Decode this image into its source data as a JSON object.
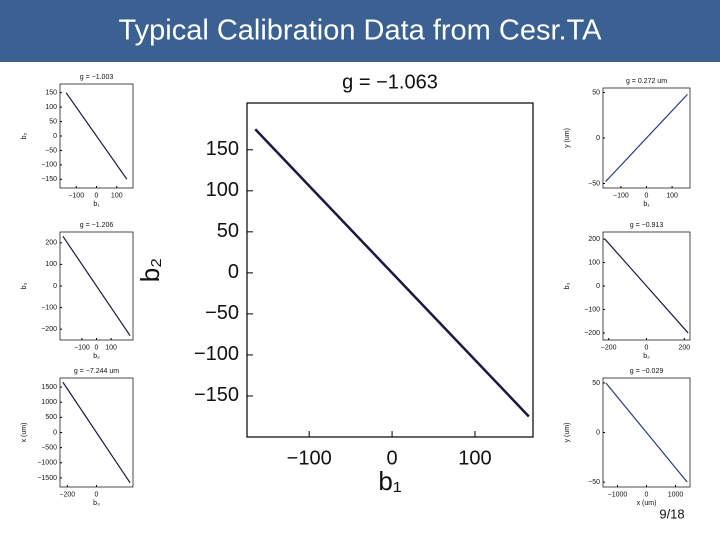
{
  "header": {
    "title": "Typical Calibration Data from Cesr.TA"
  },
  "page_number": "9/18",
  "chart_data": [
    {
      "type": "line",
      "title": "g = −1.063",
      "xlabel": "b₁",
      "ylabel": "b₂",
      "x": [
        -165,
        -100,
        0,
        100,
        165
      ],
      "values": [
        175,
        106,
        0,
        -106,
        -175
      ],
      "color": "#1a1a40",
      "xlim": [
        -175,
        170
      ],
      "ylim": [
        -200,
        207
      ],
      "xticks": [
        {
          "value": -100,
          "label": "−100"
        },
        0,
        100
      ],
      "yticks": [
        150,
        100,
        50,
        0,
        {
          "value": -50,
          "label": "−50"
        },
        {
          "value": -100,
          "label": "−100"
        },
        {
          "value": -150,
          "label": "−150"
        }
      ]
    },
    {
      "type": "line",
      "title": "g = −1.003",
      "xlabel": "b₁",
      "ylabel": "b₂",
      "x": [
        -150,
        150
      ],
      "values": [
        150,
        -150
      ],
      "color": "#1a1a40",
      "xlim": [
        -180,
        180
      ],
      "ylim": [
        -180,
        180
      ],
      "xticks": [
        {
          "value": -100,
          "label": "−100"
        },
        0,
        100
      ],
      "yticks": [
        150,
        100,
        50,
        0,
        {
          "value": -50,
          "label": "−50"
        },
        {
          "value": -100,
          "label": "−100"
        },
        {
          "value": -150,
          "label": "−150"
        }
      ]
    },
    {
      "type": "line",
      "title": "g = −1.206",
      "xlabel": "b₂",
      "ylabel": "b₃",
      "x": [
        -230,
        230
      ],
      "values": [
        230,
        -230
      ],
      "color": "#1a1a40",
      "xlim": [
        -250,
        250
      ],
      "ylim": [
        -250,
        250
      ],
      "xticks": [
        {
          "value": -100,
          "label": "−100"
        },
        0,
        100
      ],
      "yticks": [
        200,
        100,
        0,
        {
          "value": -100,
          "label": "−100"
        },
        {
          "value": -200,
          "label": "−200"
        }
      ]
    },
    {
      "type": "line",
      "title": "g = −7.244 um",
      "xlabel": "b₃",
      "ylabel": "x (um)",
      "x": [
        -230,
        230
      ],
      "values": [
        1660,
        -1660
      ],
      "color": "#1a1a40",
      "xlim": [
        -250,
        250
      ],
      "ylim": [
        -1800,
        1800
      ],
      "xticks": [
        {
          "value": -200,
          "label": "−200"
        },
        0
      ],
      "yticks": [
        1500,
        1000,
        500,
        0,
        {
          "value": -500,
          "label": "−500"
        },
        {
          "value": -1000,
          "label": "−1000"
        },
        {
          "value": -1500,
          "label": "−1500"
        }
      ]
    },
    {
      "type": "line",
      "title": "g = 0.272 um",
      "xlabel": "b₁",
      "ylabel": "y (um)",
      "x": [
        -160,
        160
      ],
      "values": [
        -48,
        48
      ],
      "color": "#2a3a8a",
      "xlim": [
        -170,
        170
      ],
      "ylim": [
        -55,
        55
      ],
      "xticks": [
        {
          "value": -100,
          "label": "−100"
        },
        0,
        100
      ],
      "yticks": [
        50,
        0,
        {
          "value": -50,
          "label": "−50"
        }
      ]
    },
    {
      "type": "line",
      "title": "g = −0.913",
      "xlabel": "b₂",
      "ylabel": "b₃",
      "x": [
        -220,
        220
      ],
      "values": [
        200,
        -200
      ],
      "color": "#1a1a40",
      "xlim": [
        -230,
        230
      ],
      "ylim": [
        -230,
        230
      ],
      "xticks": [
        {
          "value": -200,
          "label": "−200"
        },
        0,
        200
      ],
      "yticks": [
        200,
        100,
        0,
        {
          "value": -100,
          "label": "−100"
        },
        {
          "value": -200,
          "label": "−200"
        }
      ]
    },
    {
      "type": "line",
      "title": "g = −0.029",
      "xlabel": "x (um)",
      "ylabel": "y (um)",
      "x": [
        -1400,
        1400
      ],
      "values": [
        50,
        -50
      ],
      "color": "#2a3a8a",
      "xlim": [
        -1500,
        1500
      ],
      "ylim": [
        -55,
        55
      ],
      "xticks": [
        {
          "value": -1000,
          "label": "−1000"
        },
        0,
        1000
      ],
      "yticks": [
        50,
        0,
        {
          "value": -50,
          "label": "−50"
        }
      ]
    }
  ]
}
